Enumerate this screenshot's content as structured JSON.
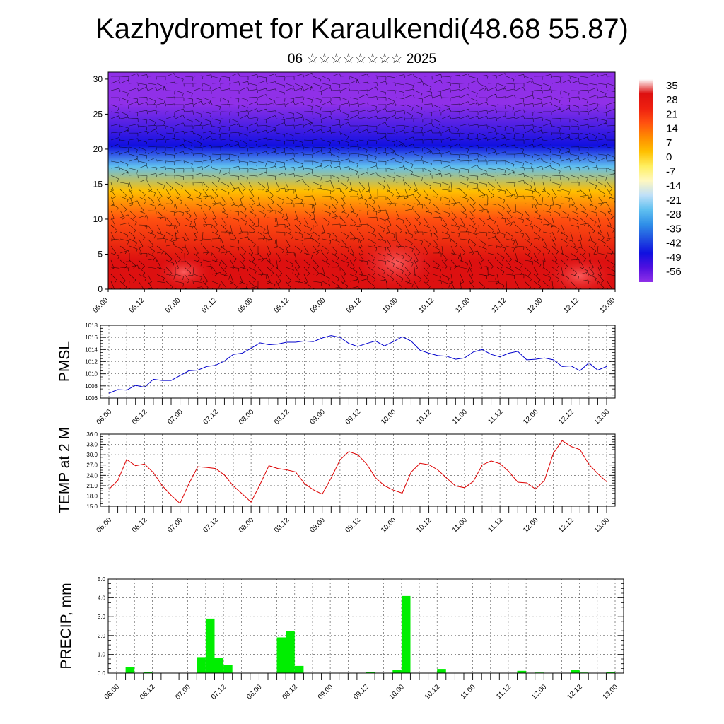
{
  "header": {
    "title": "Kazhydromet for Karaulkendi(48.68 55.87)",
    "subtitle": "06 ☆☆☆☆☆☆☆☆ 2025"
  },
  "colors": {
    "pmsl_line": "#0000cc",
    "temp_line": "#dd0000",
    "precip_bar": "#00ee00",
    "wind_barb": "#000000"
  },
  "colorbar": {
    "labels": [
      "35",
      "28",
      "21",
      "14",
      "7",
      "0",
      "-7",
      "-14",
      "-21",
      "-28",
      "-35",
      "-42",
      "-49",
      "-56"
    ],
    "stops": [
      "#ffffff",
      "#dd1010",
      "#ee2010",
      "#ff5010",
      "#ff8c00",
      "#ffc000",
      "#ffef60",
      "#fff8c0",
      "#c0e0f8",
      "#60c0f0",
      "#3090e8",
      "#2050e0",
      "#1010e0",
      "#5010e0",
      "#9030e8"
    ]
  },
  "chart_data": [
    {
      "type": "heatmap",
      "title": "",
      "x_tick_labels": [
        "06.00",
        "06.12",
        "07.00",
        "07.12",
        "08.00",
        "08.12",
        "09.00",
        "09.12",
        "10.00",
        "10.12",
        "11.00",
        "11.12",
        "12.00",
        "12.12",
        "13.00"
      ],
      "y_tick_labels": [
        "0",
        "5",
        "10",
        "15",
        "20",
        "25",
        "30"
      ],
      "ylim": [
        0,
        31
      ],
      "z_range": [
        -56,
        35
      ],
      "note_value_bands": [
        {
          "y_range": [
            0,
            8
          ],
          "value": 28
        },
        {
          "y_range": [
            8,
            12
          ],
          "value": 14
        },
        {
          "y_range": [
            12,
            16
          ],
          "value": 0
        },
        {
          "y_range": [
            16,
            19
          ],
          "value": -21
        },
        {
          "y_range": [
            19,
            22
          ],
          "value": -42
        },
        {
          "y_range": [
            22,
            31
          ],
          "value": -56
        }
      ],
      "wind_barbs": true
    },
    {
      "type": "line",
      "ylabel": "PMSL",
      "x_tick_labels": [
        "06.00",
        "06.12",
        "07.00",
        "07.12",
        "08.00",
        "08.12",
        "09.00",
        "09.12",
        "10.00",
        "10.12",
        "11.00",
        "11.12",
        "12.00",
        "12.12",
        "13.00"
      ],
      "ylim": [
        1006,
        1018
      ],
      "y_tick_labels": [
        "1006",
        "1008",
        "1010",
        "1012",
        "1014",
        "1016",
        "1018"
      ],
      "x_hours": [
        0,
        3,
        6,
        9,
        12,
        15,
        18,
        21,
        24,
        27,
        30,
        33,
        36,
        39,
        42,
        45,
        48,
        51,
        54,
        57,
        60,
        63,
        66,
        69,
        72,
        75,
        78,
        81,
        84,
        87,
        90,
        93,
        96,
        99,
        102,
        105,
        108,
        111,
        114,
        117,
        120,
        123,
        126,
        129,
        132,
        135,
        138,
        141,
        144,
        147,
        150,
        153,
        156,
        159,
        162,
        165,
        168
      ],
      "values": [
        1006.8,
        1007.4,
        1007.3,
        1008.1,
        1007.8,
        1009.1,
        1008.9,
        1008.9,
        1009.7,
        1010.5,
        1010.6,
        1011.2,
        1011.4,
        1012.1,
        1013.2,
        1013.4,
        1014.2,
        1015.1,
        1014.8,
        1014.9,
        1015.2,
        1015.2,
        1015.4,
        1015.3,
        1015.9,
        1016.3,
        1016.0,
        1015.0,
        1014.5,
        1015.0,
        1015.4,
        1014.6,
        1015.3,
        1016.1,
        1015.4,
        1013.9,
        1013.4,
        1013.0,
        1012.9,
        1012.4,
        1012.6,
        1013.6,
        1014.0,
        1013.2,
        1012.8,
        1013.4,
        1013.7,
        1012.3,
        1012.4,
        1012.6,
        1012.3,
        1011.2,
        1011.3,
        1010.5,
        1011.8,
        1010.6,
        1011.2
      ]
    },
    {
      "type": "line",
      "ylabel": "TEMP at 2 M",
      "x_tick_labels": [
        "06.00",
        "06.12",
        "07.00",
        "07.12",
        "08.00",
        "08.12",
        "09.00",
        "09.12",
        "10.00",
        "10.12",
        "11.00",
        "11.12",
        "12.00",
        "12.12",
        "13.00"
      ],
      "ylim": [
        15.0,
        36.0
      ],
      "y_tick_labels": [
        "15.0",
        "18.0",
        "21.0",
        "24.0",
        "27.0",
        "30.0",
        "33.0",
        "36.0"
      ],
      "x_hours": [
        0,
        3,
        6,
        9,
        12,
        15,
        18,
        21,
        24,
        27,
        30,
        33,
        36,
        39,
        42,
        45,
        48,
        51,
        54,
        57,
        60,
        63,
        66,
        69,
        72,
        75,
        78,
        81,
        84,
        87,
        90,
        93,
        96,
        99,
        102,
        105,
        108,
        111,
        114,
        117,
        120,
        123,
        126,
        129,
        132,
        135,
        138,
        141,
        144,
        147,
        150,
        153,
        156,
        159,
        162,
        165,
        168
      ],
      "values": [
        19.9,
        22.5,
        28.6,
        26.8,
        27.3,
        24.8,
        21.0,
        18.2,
        15.8,
        21.5,
        26.5,
        26.3,
        26.0,
        24.1,
        20.9,
        18.6,
        16.2,
        21.3,
        26.8,
        26.0,
        25.6,
        25.0,
        21.6,
        19.8,
        18.5,
        23.2,
        28.5,
        30.9,
        30.0,
        27.3,
        23.3,
        21.0,
        19.7,
        18.8,
        24.9,
        27.5,
        27.1,
        25.6,
        23.2,
        20.9,
        20.4,
        22.2,
        27.0,
        28.2,
        27.4,
        25.1,
        22.0,
        21.8,
        20.0,
        22.5,
        30.4,
        34.1,
        32.4,
        31.5,
        27.2,
        24.5,
        22.1
      ]
    },
    {
      "type": "bar",
      "ylabel": "PRECIP, mm",
      "x_tick_labels": [
        "06.00",
        "06.12",
        "07.00",
        "07.12",
        "08.00",
        "08.12",
        "09.00",
        "09.12",
        "10.00",
        "10.12",
        "11.00",
        "11.12",
        "12.00",
        "12.12",
        "13.00"
      ],
      "ylim": [
        0.0,
        5.0
      ],
      "y_tick_labels": [
        "0.0",
        "1.0",
        "2.0",
        "3.0",
        "4.0",
        "5.0"
      ],
      "x_hours": [
        3,
        6,
        9,
        12,
        15,
        18,
        21,
        24,
        27,
        30,
        33,
        36,
        39,
        42,
        45,
        48,
        51,
        54,
        57,
        60,
        63,
        66,
        69,
        72,
        75,
        78,
        81,
        84,
        87,
        90,
        93,
        96,
        99,
        102,
        105,
        108,
        111,
        114,
        117,
        120,
        123,
        126,
        129,
        132,
        135,
        138,
        141,
        144,
        147,
        150,
        153,
        156,
        159,
        162,
        165,
        168
      ],
      "values": [
        0.0,
        0.3,
        0.0,
        0.05,
        0.0,
        0.0,
        0.0,
        0.0,
        0.0,
        0.85,
        2.9,
        0.8,
        0.45,
        0.0,
        0.0,
        0.0,
        0.0,
        0.0,
        1.9,
        2.25,
        0.38,
        0.0,
        0.0,
        0.0,
        0.0,
        0.0,
        0.0,
        0.0,
        0.07,
        0.0,
        0.0,
        0.15,
        4.1,
        0.0,
        0.0,
        0.0,
        0.22,
        0.0,
        0.0,
        0.0,
        0.0,
        0.0,
        0.0,
        0.0,
        0.0,
        0.12,
        0.0,
        0.03,
        0.0,
        0.0,
        0.0,
        0.15,
        0.03,
        0.0,
        0.0,
        0.07
      ]
    }
  ]
}
